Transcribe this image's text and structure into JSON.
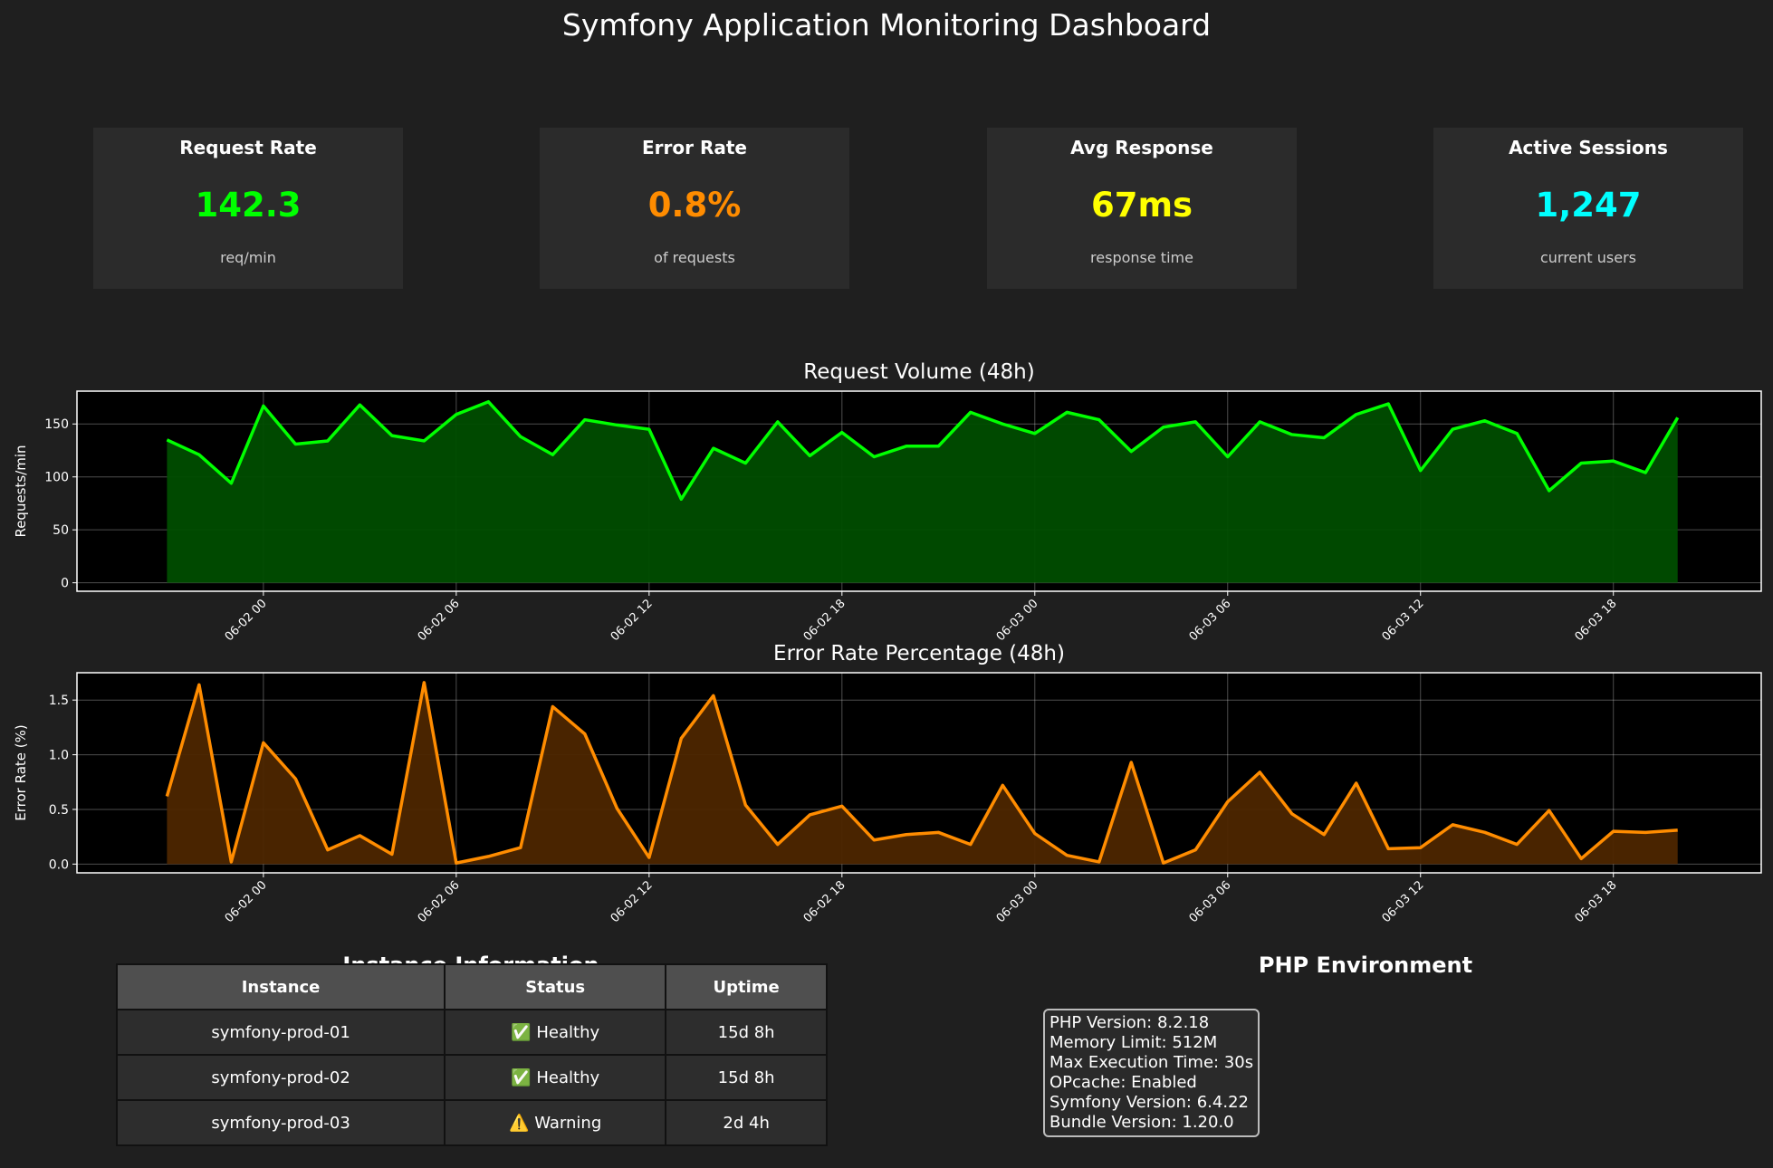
{
  "title": "Symfony Application Monitoring Dashboard",
  "cards": [
    {
      "label": "Request Rate",
      "value": "142.3",
      "unit": "req/min",
      "color": "#00ff00"
    },
    {
      "label": "Error Rate",
      "value": "0.8%",
      "unit": "of requests",
      "color": "#ff8c00"
    },
    {
      "label": "Avg Response",
      "value": "67ms",
      "unit": "response time",
      "color": "#ffff00"
    },
    {
      "label": "Active Sessions",
      "value": "1,247",
      "unit": "current users",
      "color": "#00ffff"
    }
  ],
  "chart_data": [
    {
      "type": "area",
      "title": "Request Volume (48h)",
      "xlabel": "",
      "ylabel": "Requests/min",
      "color": "#00ff00",
      "fill_color": "#004d00",
      "x_start": "2024-06-01 21:00",
      "x_step_hours": 1,
      "ylim": [
        -8,
        181
      ],
      "yticks": [
        0,
        50,
        100,
        150
      ],
      "xticks": [
        "06-02 00",
        "06-02 06",
        "06-02 12",
        "06-02 18",
        "06-03 00",
        "06-03 06",
        "06-03 12",
        "06-03 18"
      ],
      "grid": true,
      "values": [
        135,
        121,
        94,
        167,
        131,
        134,
        168,
        139,
        134,
        159,
        171,
        138,
        121,
        154,
        149,
        145,
        79,
        127,
        113,
        152,
        120,
        142,
        119,
        129,
        129,
        161,
        150,
        141,
        161,
        154,
        124,
        147,
        152,
        119,
        152,
        140,
        137,
        159,
        169,
        106,
        145,
        153,
        141,
        87,
        113,
        115,
        104,
        156
      ]
    },
    {
      "type": "area",
      "title": "Error Rate Percentage (48h)",
      "xlabel": "",
      "ylabel": "Error Rate (%)",
      "color": "#ff8c00",
      "fill_color": "#4d2600",
      "x_start": "2024-06-01 21:00",
      "x_step_hours": 1,
      "ylim": [
        -0.08,
        1.75
      ],
      "yticks": [
        "0.0",
        "0.5",
        "1.0",
        "1.5"
      ],
      "xticks": [
        "06-02 00",
        "06-02 06",
        "06-02 12",
        "06-02 18",
        "06-03 00",
        "06-03 06",
        "06-03 12",
        "06-03 18"
      ],
      "grid": true,
      "values": [
        0.62,
        1.64,
        0.02,
        1.11,
        0.78,
        0.13,
        0.26,
        0.09,
        1.66,
        0.01,
        0.07,
        0.15,
        1.44,
        1.19,
        0.51,
        0.06,
        1.15,
        1.54,
        0.54,
        0.18,
        0.45,
        0.53,
        0.22,
        0.27,
        0.29,
        0.18,
        0.72,
        0.28,
        0.08,
        0.02,
        0.93,
        0.01,
        0.13,
        0.57,
        0.84,
        0.46,
        0.27,
        0.74,
        0.14,
        0.15,
        0.36,
        0.29,
        0.18,
        0.49,
        0.05,
        0.3,
        0.29,
        0.31
      ]
    }
  ],
  "instances": {
    "title": "Instance Information",
    "headers": [
      "Instance",
      "Status",
      "Uptime"
    ],
    "rows": [
      [
        "symfony-prod-01",
        "✅ Healthy",
        "15d 8h"
      ],
      [
        "symfony-prod-02",
        "✅ Healthy",
        "15d 8h"
      ],
      [
        "symfony-prod-03",
        "⚠️ Warning",
        "2d 4h"
      ]
    ]
  },
  "php_env": {
    "title": "PHP Environment",
    "lines": [
      "PHP Version: 8.2.18",
      "Memory Limit: 512M",
      "Max Execution Time: 30s",
      "OPcache: Enabled",
      "Symfony Version: 6.4.22",
      "Bundle Version: 1.20.0"
    ]
  }
}
